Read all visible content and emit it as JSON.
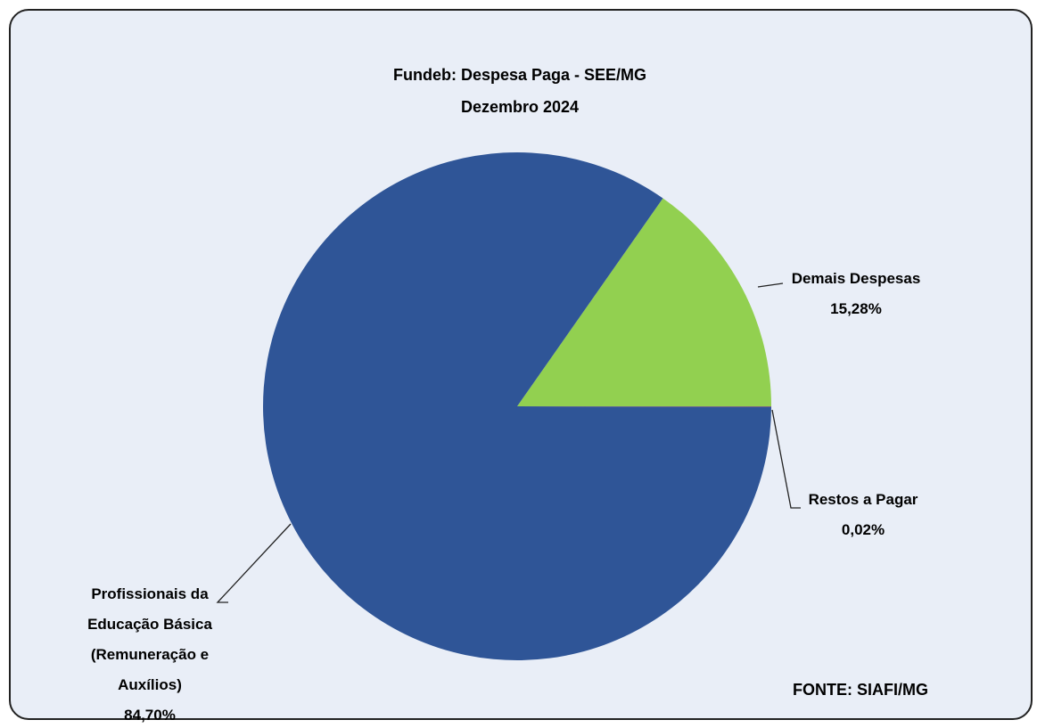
{
  "chart_data": {
    "type": "pie",
    "title": "Fundeb: Despesa Paga - SEE/MG",
    "subtitle": "Dezembro 2024",
    "categories": [
      "Demais Despesas",
      "Profissionais da Educação Básica (Remuneração e Auxílios)",
      "Restos a Pagar"
    ],
    "values": [
      15.28,
      84.7,
      0.02
    ],
    "value_labels": [
      "15,28%",
      "84,70%",
      "0,02%"
    ],
    "colors": [
      "#92D050",
      "#2F5597",
      "#C0504D"
    ],
    "source": "FONTE: SIAFI/MG"
  }
}
